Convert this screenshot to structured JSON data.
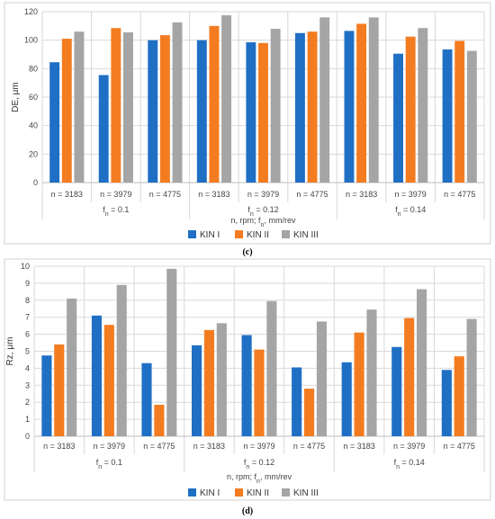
{
  "colors": {
    "kin1": "#1f6fc5",
    "kin2": "#f47c20",
    "kin3": "#a5a5a5"
  },
  "chart_data": [
    {
      "type": "bar",
      "panel_label": "(c)",
      "ylabel": "DE, μm",
      "xlabel": "n, rpm; f_n, mm/rev",
      "ylim": [
        0,
        120
      ],
      "yticks": [
        0,
        20,
        40,
        60,
        80,
        100,
        120
      ],
      "categories": [
        "n = 3183",
        "n = 3979",
        "n = 4775",
        "n = 3183",
        "n = 3979",
        "n = 4775",
        "n = 3183",
        "n = 3979",
        "n = 4775"
      ],
      "groups": [
        "f_n = 0.1",
        "f_n = 0.12",
        "f_n = 0.14"
      ],
      "legend": "bottom",
      "series": [
        {
          "name": "KIN I",
          "values": [
            84.5,
            75.5,
            100,
            100,
            98.5,
            105,
            106.5,
            90.5,
            93.5
          ]
        },
        {
          "name": "KIN II",
          "values": [
            101,
            108.5,
            103.5,
            110,
            98,
            106,
            111.5,
            102.5,
            99.5
          ]
        },
        {
          "name": "KIN III",
          "values": [
            106,
            105.5,
            112.5,
            117.5,
            108,
            116,
            116,
            108.5,
            92.5
          ]
        }
      ]
    },
    {
      "type": "bar",
      "panel_label": "(d)",
      "ylabel": "Rz, μm",
      "xlabel": "n, rpm; f_n, mm/rev",
      "ylim": [
        0,
        10
      ],
      "yticks": [
        0,
        1,
        2,
        3,
        4,
        5,
        6,
        7,
        8,
        9,
        10
      ],
      "categories": [
        "n = 3183",
        "n = 3979",
        "n = 4775",
        "n = 3183",
        "n = 3979",
        "n = 4775",
        "n = 3183",
        "n = 3979",
        "n = 4775"
      ],
      "groups": [
        "f_n = 0.1",
        "f_n = 0.12",
        "f_n = 0.14"
      ],
      "legend": "bottom",
      "series": [
        {
          "name": "KIN I",
          "values": [
            4.75,
            7.1,
            4.3,
            5.35,
            5.95,
            4.05,
            4.35,
            5.25,
            3.9
          ]
        },
        {
          "name": "KIN II",
          "values": [
            5.4,
            6.55,
            1.85,
            6.25,
            5.1,
            2.8,
            6.1,
            6.95,
            4.7
          ]
        },
        {
          "name": "KIN III",
          "values": [
            8.1,
            8.9,
            9.85,
            6.65,
            7.95,
            6.75,
            7.45,
            8.65,
            6.9
          ]
        }
      ]
    }
  ]
}
